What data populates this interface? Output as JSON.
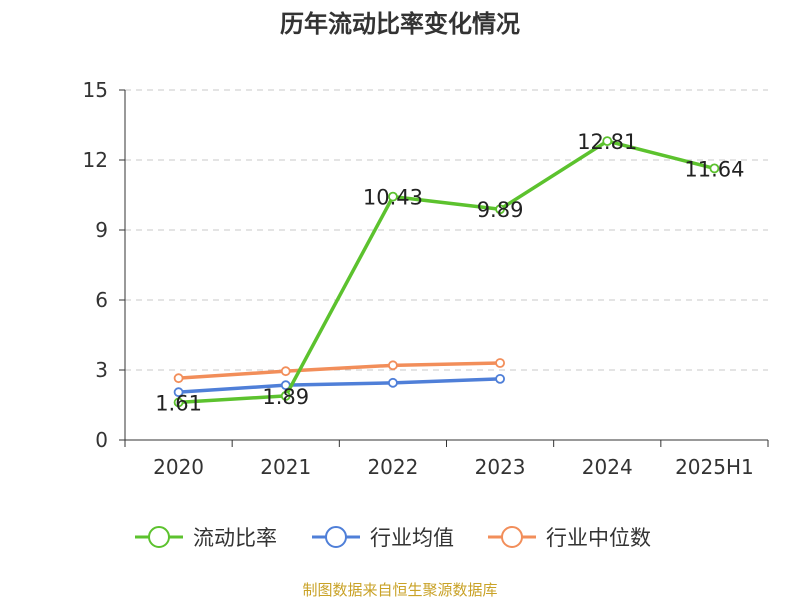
{
  "chart_data": {
    "type": "line",
    "title": "历年流动比率变化情况",
    "categories": [
      "2020",
      "2021",
      "2022",
      "2023",
      "2024",
      "2025H1"
    ],
    "ylim": [
      0,
      15
    ],
    "yticks": [
      "0",
      "3",
      "6",
      "9",
      "12",
      "15"
    ],
    "grid": true,
    "legend_position": "bottom",
    "series": [
      {
        "name": "流动比率",
        "color": "#5cc22e",
        "values": [
          1.61,
          1.89,
          10.43,
          9.89,
          12.81,
          11.64
        ],
        "labels": [
          "1.61",
          "1.89",
          "10.43",
          "9.89",
          "12.81",
          "11.64"
        ]
      },
      {
        "name": "行业均值",
        "color": "#4f7fd8",
        "values": [
          2.05,
          2.35,
          2.45,
          2.62,
          null,
          null
        ]
      },
      {
        "name": "行业中位数",
        "color": "#f28e5a",
        "values": [
          2.65,
          2.95,
          3.2,
          3.3,
          null,
          null
        ]
      }
    ]
  },
  "footer": {
    "source": "制图数据来自恒生聚源数据库",
    "color": "#c9a227"
  }
}
